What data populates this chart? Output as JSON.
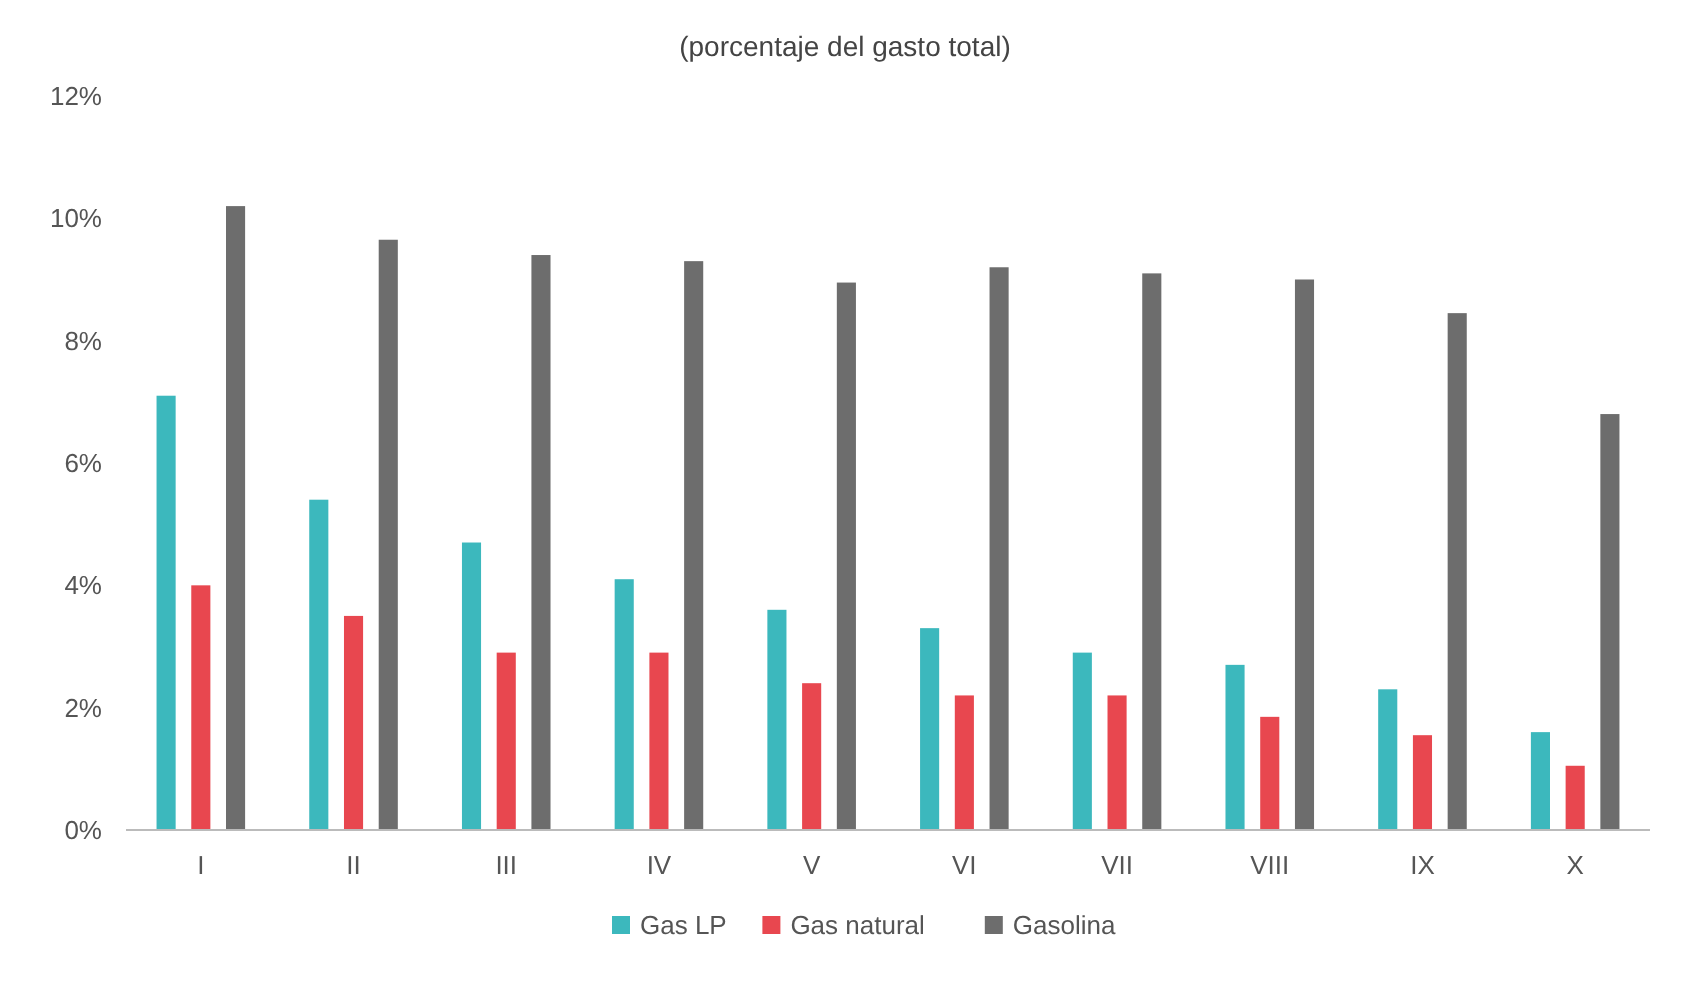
{
  "chart_data": {
    "type": "bar",
    "title": "(porcentaje del gasto total)",
    "categories": [
      "I",
      "II",
      "III",
      "IV",
      "V",
      "VI",
      "VII",
      "VIII",
      "IX",
      "X"
    ],
    "series": [
      {
        "name": "Gas LP",
        "color": "#3cb8bd",
        "values": [
          7.1,
          5.4,
          4.7,
          4.1,
          3.6,
          3.3,
          2.9,
          2.7,
          2.3,
          1.6
        ]
      },
      {
        "name": "Gas natural",
        "color": "#e8474f",
        "values": [
          4.0,
          3.5,
          2.9,
          2.9,
          2.4,
          2.2,
          2.2,
          1.85,
          1.55,
          1.05
        ]
      },
      {
        "name": "Gasolina",
        "color": "#6d6d6d",
        "values": [
          10.2,
          9.65,
          9.4,
          9.3,
          8.95,
          9.2,
          9.1,
          9.0,
          8.45,
          6.8
        ]
      }
    ],
    "ylim": [
      0,
      12
    ],
    "yticks": [
      {
        "value": 0,
        "label": "0%"
      },
      {
        "value": 2,
        "label": "2%"
      },
      {
        "value": 4,
        "label": "4%"
      },
      {
        "value": 6,
        "label": "6%"
      },
      {
        "value": 8,
        "label": "8%"
      },
      {
        "value": 10,
        "label": "10%"
      },
      {
        "value": 12,
        "label": "12%"
      }
    ],
    "grid": false,
    "legend": "bottom"
  }
}
